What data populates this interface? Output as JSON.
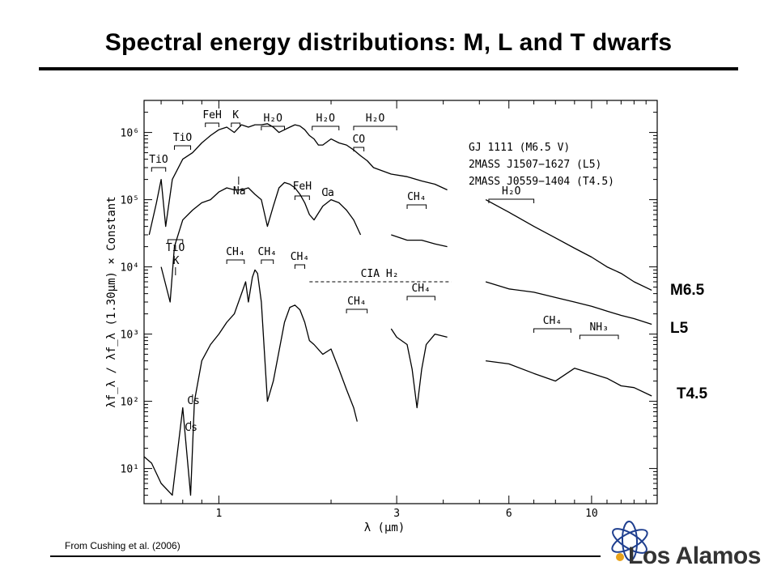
{
  "slide": {
    "title": "Spectral energy distributions: M, L and T dwarfs",
    "credit": "From Cushing et al. (2006)",
    "logo_text": "Los Alamos"
  },
  "side_labels": [
    "M6.5",
    "L5",
    "T4.5"
  ],
  "chart_data": {
    "type": "line",
    "title": "",
    "xlabel": "λ (μm)",
    "ylabel": "λf_λ / λf_λ (1.30μm) × Constant",
    "x_scale": "log",
    "y_scale": "log",
    "xlim": [
      0.63,
      15
    ],
    "ylim": [
      3,
      3000000
    ],
    "x_ticks": [
      1,
      3,
      6,
      10
    ],
    "x_tick_labels": [
      "1",
      "3",
      "6",
      "10"
    ],
    "y_ticks": [
      10,
      100,
      1000,
      10000,
      100000,
      1000000
    ],
    "y_tick_labels": [
      "10¹",
      "10²",
      "10³",
      "10⁴",
      "10⁵",
      "10⁶"
    ],
    "legend": [
      "GJ 1111 (M6.5 V)",
      "2MASS J1507−1627 (L5)",
      "2MASS J0559−1404 (T4.5)"
    ],
    "legend_position": "top-right",
    "series": [
      {
        "name": "GJ 1111 (M6.5 V)",
        "x": [
          0.65,
          0.68,
          0.7,
          0.72,
          0.75,
          0.8,
          0.85,
          0.9,
          0.95,
          1.0,
          1.05,
          1.1,
          1.15,
          1.2,
          1.25,
          1.3,
          1.35,
          1.4,
          1.45,
          1.5,
          1.55,
          1.6,
          1.65,
          1.7,
          1.75,
          1.8,
          1.85,
          1.9,
          2.0,
          2.1,
          2.2,
          2.3,
          2.4,
          2.5,
          2.6,
          2.9,
          3.2,
          3.5,
          3.8,
          4.1,
          5.2,
          6.0,
          7.0,
          8.0,
          9.0,
          10.0,
          11.0,
          12.0,
          13.0,
          14.5
        ],
        "y": [
          30000,
          90000,
          200000,
          40000,
          200000,
          400000,
          500000,
          700000,
          900000,
          1100000,
          1200000,
          1000000,
          1300000,
          1200000,
          1300000,
          1300000,
          1350000,
          1200000,
          1000000,
          1100000,
          1200000,
          1300000,
          1250000,
          1100000,
          900000,
          800000,
          650000,
          650000,
          800000,
          700000,
          650000,
          550000,
          450000,
          380000,
          300000,
          240000,
          220000,
          190000,
          170000,
          140000,
          100000,
          65000,
          40000,
          27000,
          19000,
          14000,
          10000,
          8000,
          6000,
          4500
        ]
      },
      {
        "name": "2MASS J1507−1627 (L5)",
        "x": [
          0.7,
          0.74,
          0.76,
          0.8,
          0.85,
          0.9,
          0.95,
          1.0,
          1.05,
          1.1,
          1.15,
          1.2,
          1.25,
          1.3,
          1.35,
          1.4,
          1.45,
          1.5,
          1.55,
          1.6,
          1.65,
          1.7,
          1.75,
          1.8,
          1.9,
          2.0,
          2.1,
          2.2,
          2.3,
          2.4,
          2.9,
          3.2,
          3.5,
          3.8,
          4.1,
          5.2,
          6.0,
          7.0,
          8.0,
          9.0,
          10.0,
          11.0,
          12.0,
          13.0,
          14.5
        ],
        "y": [
          10000,
          3000,
          20000,
          50000,
          70000,
          90000,
          100000,
          130000,
          150000,
          140000,
          140000,
          150000,
          120000,
          100000,
          40000,
          80000,
          150000,
          180000,
          170000,
          150000,
          120000,
          90000,
          60000,
          50000,
          80000,
          100000,
          90000,
          70000,
          50000,
          30000,
          30000,
          25000,
          25000,
          22000,
          20000,
          6000,
          4700,
          4200,
          3500,
          3000,
          2600,
          2200,
          1900,
          1700,
          1400
        ]
      },
      {
        "name": "2MASS J0559−1404 (T4.5)",
        "x": [
          0.63,
          0.66,
          0.7,
          0.75,
          0.8,
          0.84,
          0.86,
          0.9,
          0.95,
          1.0,
          1.05,
          1.1,
          1.15,
          1.18,
          1.2,
          1.23,
          1.25,
          1.27,
          1.3,
          1.35,
          1.4,
          1.5,
          1.55,
          1.6,
          1.65,
          1.7,
          1.75,
          1.8,
          1.9,
          2.0,
          2.1,
          2.2,
          2.3,
          2.35,
          2.9,
          3.0,
          3.2,
          3.3,
          3.4,
          3.5,
          3.6,
          3.8,
          4.1,
          5.2,
          6.0,
          7.0,
          8.0,
          9.0,
          10.0,
          11.0,
          12.0,
          13.0,
          14.5
        ],
        "y": [
          15,
          12,
          6,
          4,
          80,
          4,
          100,
          400,
          700,
          1000,
          1500,
          2000,
          4000,
          6000,
          3000,
          7000,
          9000,
          8000,
          3000,
          100,
          200,
          1500,
          2500,
          2700,
          2300,
          1500,
          800,
          700,
          500,
          600,
          300,
          150,
          80,
          50,
          1200,
          900,
          700,
          300,
          80,
          300,
          700,
          1000,
          900,
          400,
          360,
          260,
          200,
          310,
          260,
          220,
          170,
          160,
          120
        ]
      }
    ],
    "feature_labels": [
      "TiO",
      "TiO",
      "FeH",
      "K",
      "H₂O",
      "H₂O",
      "H₂O",
      "CO",
      "Na",
      "FeH",
      "Ca",
      "CH₄",
      "TiO",
      "K",
      "CH₄",
      "CH₄",
      "CH₄",
      "CIA H₂",
      "CH₄",
      "CH₄",
      "H₂O",
      "CH₄",
      "NH₃",
      "Cs",
      "Cs",
      "CH₄"
    ]
  }
}
